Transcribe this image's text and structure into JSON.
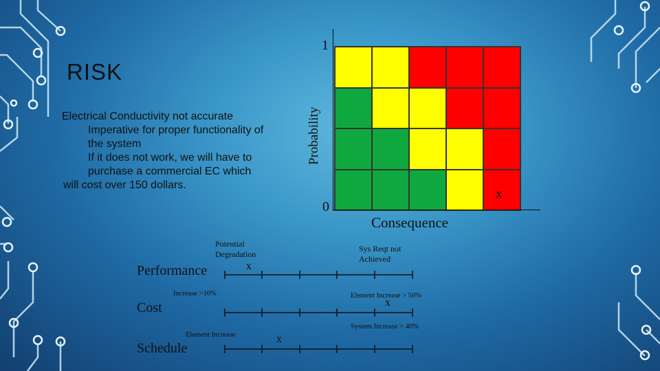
{
  "slide": {
    "title": "RISK",
    "description_lines": [
      "Electrical Conductivity not accurate",
      "Imperative for proper functionality of",
      "the system",
      "If it does not work, we will have to",
      "purchase a commercial EC which",
      "will  cost over 150 dollars."
    ]
  },
  "matrix": {
    "y_axis_label": "Probability",
    "y_top": "1",
    "y_bottom": "0",
    "x_axis_label": "Consequence",
    "marker": "x",
    "marker_cell": {
      "row": 4,
      "col": 5
    },
    "colors": {
      "g": "#0fa83e",
      "y": "#ffff00",
      "r": "#ff0000"
    },
    "rows": [
      [
        "y",
        "y",
        "r",
        "r",
        "r"
      ],
      [
        "g",
        "y",
        "y",
        "r",
        "r"
      ],
      [
        "g",
        "g",
        "y",
        "y",
        "r"
      ],
      [
        "g",
        "g",
        "g",
        "y",
        "r"
      ]
    ]
  },
  "scales": {
    "performance": {
      "label": "Performance",
      "left_note": [
        "Potential",
        "Degradation"
      ],
      "right_note": [
        "Sys Reqt not",
        "Achieved"
      ],
      "marker": "x"
    },
    "cost": {
      "label": "Cost",
      "left_note": "Increase >10%",
      "right_note": "Element Increase > 50%",
      "marker": "x"
    },
    "schedule": {
      "label": "Schedule",
      "left_note": "Element Increase",
      "right_note": "System Increase > 40%",
      "marker": "x"
    }
  }
}
